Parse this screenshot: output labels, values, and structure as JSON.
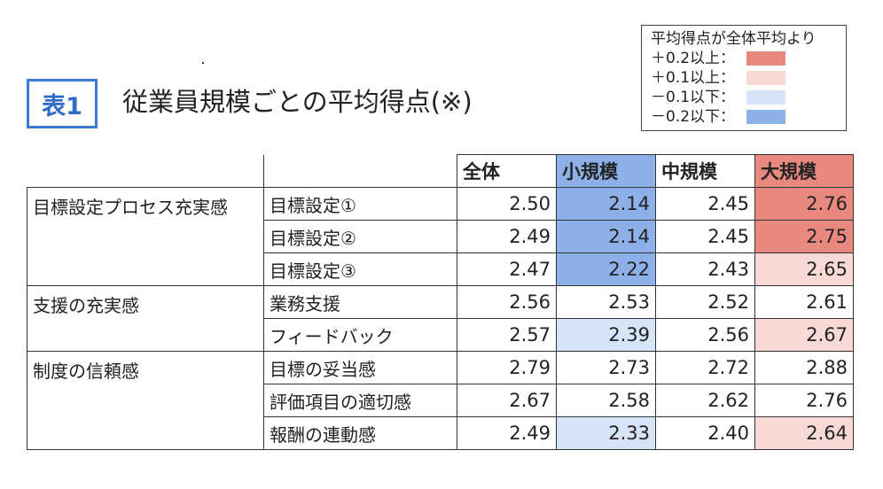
{
  "badge": "表1",
  "title": "従業員規模ごとの平均得点(※)",
  "legend": {
    "heading": "平均得点が全体平均より",
    "items": [
      {
        "label": "＋0.2以上：",
        "color": "#e8887f"
      },
      {
        "label": "＋0.1以上：",
        "color": "#f7d9d6"
      },
      {
        "label": "－0.1以下：",
        "color": "#d7e3f6"
      },
      {
        "label": "－0.2以下：",
        "color": "#8db0e8"
      }
    ]
  },
  "table": {
    "headers": [
      "全体",
      "小規模",
      "中規模",
      "大規模"
    ],
    "groups": [
      {
        "category": "目標設定プロセス充実感",
        "rows": [
          {
            "item": "目標設定①",
            "values": [
              "2.50",
              "2.14",
              "2.45",
              "2.76"
            ]
          },
          {
            "item": "目標設定②",
            "values": [
              "2.49",
              "2.14",
              "2.45",
              "2.75"
            ]
          },
          {
            "item": "目標設定③",
            "values": [
              "2.47",
              "2.22",
              "2.43",
              "2.65"
            ]
          }
        ]
      },
      {
        "category": "支援の充実感",
        "rows": [
          {
            "item": "業務支援",
            "values": [
              "2.56",
              "2.53",
              "2.52",
              "2.61"
            ]
          },
          {
            "item": "フィードバック",
            "values": [
              "2.57",
              "2.39",
              "2.56",
              "2.67"
            ]
          }
        ]
      },
      {
        "category": "制度の信頼感",
        "rows": [
          {
            "item": "目標の妥当感",
            "values": [
              "2.79",
              "2.73",
              "2.72",
              "2.88"
            ]
          },
          {
            "item": "評価項目の適切感",
            "values": [
              "2.67",
              "2.58",
              "2.62",
              "2.76"
            ]
          },
          {
            "item": "報酬の連動感",
            "values": [
              "2.49",
              "2.33",
              "2.40",
              "2.64"
            ]
          }
        ]
      }
    ],
    "header_colors": [
      "#ffffff",
      "#8db0e8",
      "#ffffff",
      "#e8887f"
    ],
    "cell_colors": [
      [
        "#ffffff",
        "#8db0e8",
        "#ffffff",
        "#e8887f"
      ],
      [
        "#ffffff",
        "#8db0e8",
        "#ffffff",
        "#e8887f"
      ],
      [
        "#ffffff",
        "#8db0e8",
        "#ffffff",
        "#f7d9d6"
      ],
      [
        "#ffffff",
        "#ffffff",
        "#ffffff",
        "#ffffff"
      ],
      [
        "#ffffff",
        "#d7e3f6",
        "#ffffff",
        "#f7d9d6"
      ],
      [
        "#ffffff",
        "#ffffff",
        "#ffffff",
        "#ffffff"
      ],
      [
        "#ffffff",
        "#ffffff",
        "#ffffff",
        "#ffffff"
      ],
      [
        "#ffffff",
        "#d7e3f6",
        "#ffffff",
        "#f7d9d6"
      ]
    ]
  }
}
